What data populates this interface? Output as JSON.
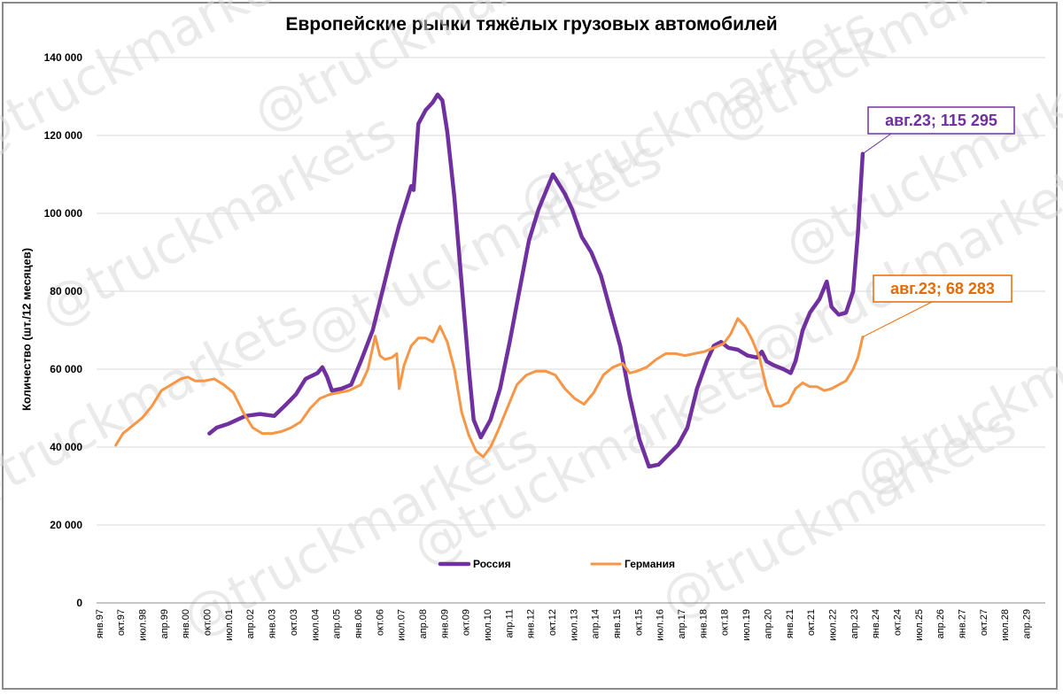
{
  "chart_data": {
    "type": "line",
    "title": "Европейские рынки тяжёлых грузовых автомобилей",
    "xlabel": "",
    "ylabel": "Количество (шт./12 месяцев)",
    "ylim": [
      0,
      140000
    ],
    "yticks": [
      0,
      20000,
      40000,
      60000,
      80000,
      100000,
      120000,
      140000
    ],
    "ytick_labels": [
      "0",
      "20 000",
      "40 000",
      "60 000",
      "80 000",
      "100 000",
      "120 000",
      "140 000"
    ],
    "xlim": [
      "1997-01",
      "2029-12"
    ],
    "xtick_labels": [
      "янв.97",
      "окт.97",
      "июл.98",
      "апр.99",
      "янв.00",
      "окт.00",
      "июл.01",
      "апр.02",
      "янв.03",
      "окт.03",
      "июл.04",
      "апр.05",
      "янв.06",
      "окт.06",
      "июл.07",
      "апр.08",
      "янв.09",
      "окт.09",
      "июл.10",
      "апр.11",
      "янв.12",
      "окт.12",
      "июл.13",
      "апр.14",
      "янв.15",
      "окт.15",
      "июл.16",
      "апр.17",
      "янв.18",
      "окт.18",
      "июл.19",
      "апр.20",
      "янв.21",
      "окт.21",
      "июл.22",
      "апр.23",
      "янв.24",
      "окт.24",
      "июл.25",
      "апр.26",
      "янв.27",
      "окт.27",
      "июл.28",
      "апр.29"
    ],
    "grid": true,
    "legend_position": "bottom-center",
    "series": [
      {
        "name": "Россия",
        "color": "#7030a0",
        "points": [
          [
            "2000-12",
            43500
          ],
          [
            "2001-03",
            45000
          ],
          [
            "2001-08",
            46000
          ],
          [
            "2002-03",
            48000
          ],
          [
            "2002-09",
            48500
          ],
          [
            "2003-03",
            48000
          ],
          [
            "2003-08",
            51000
          ],
          [
            "2003-12",
            53500
          ],
          [
            "2004-04",
            57500
          ],
          [
            "2004-09",
            59000
          ],
          [
            "2004-11",
            60500
          ],
          [
            "2005-01",
            58000
          ],
          [
            "2005-03",
            54500
          ],
          [
            "2005-07",
            55000
          ],
          [
            "2005-11",
            56000
          ],
          [
            "2006-03",
            62000
          ],
          [
            "2006-08",
            70000
          ],
          [
            "2006-12",
            80000
          ],
          [
            "2007-04",
            90000
          ],
          [
            "2007-07",
            97000
          ],
          [
            "2007-10",
            103000
          ],
          [
            "2007-12",
            107000
          ],
          [
            "2008-01",
            106000
          ],
          [
            "2008-03",
            123000
          ],
          [
            "2008-06",
            126500
          ],
          [
            "2008-09",
            128500
          ],
          [
            "2008-11",
            130500
          ],
          [
            "2009-01",
            129000
          ],
          [
            "2009-03",
            121000
          ],
          [
            "2009-06",
            104000
          ],
          [
            "2009-09",
            82000
          ],
          [
            "2009-12",
            60000
          ],
          [
            "2010-02",
            47000
          ],
          [
            "2010-05",
            42500
          ],
          [
            "2010-09",
            47000
          ],
          [
            "2011-01",
            55000
          ],
          [
            "2011-05",
            67000
          ],
          [
            "2011-09",
            80000
          ],
          [
            "2012-01",
            93000
          ],
          [
            "2012-05",
            101000
          ],
          [
            "2012-09",
            107000
          ],
          [
            "2012-11",
            110000
          ],
          [
            "2013-01",
            108000
          ],
          [
            "2013-04",
            105000
          ],
          [
            "2013-07",
            101000
          ],
          [
            "2013-11",
            94000
          ],
          [
            "2014-03",
            90000
          ],
          [
            "2014-07",
            84000
          ],
          [
            "2014-11",
            75000
          ],
          [
            "2015-03",
            66000
          ],
          [
            "2015-07",
            53000
          ],
          [
            "2015-11",
            42000
          ],
          [
            "2016-03",
            35000
          ],
          [
            "2016-07",
            35500
          ],
          [
            "2016-11",
            38000
          ],
          [
            "2017-03",
            40500
          ],
          [
            "2017-07",
            45000
          ],
          [
            "2017-11",
            55000
          ],
          [
            "2018-03",
            62000
          ],
          [
            "2018-06",
            66000
          ],
          [
            "2018-09",
            67000
          ],
          [
            "2018-12",
            65500
          ],
          [
            "2019-04",
            65000
          ],
          [
            "2019-08",
            63500
          ],
          [
            "2019-12",
            63000
          ],
          [
            "2020-02",
            64500
          ],
          [
            "2020-04",
            62000
          ],
          [
            "2020-07",
            61000
          ],
          [
            "2020-11",
            60000
          ],
          [
            "2021-02",
            59000
          ],
          [
            "2021-04",
            62000
          ],
          [
            "2021-07",
            70000
          ],
          [
            "2021-10",
            74500
          ],
          [
            "2022-02",
            78000
          ],
          [
            "2022-05",
            82500
          ],
          [
            "2022-07",
            76000
          ],
          [
            "2022-10",
            74000
          ],
          [
            "2023-01",
            74500
          ],
          [
            "2023-04",
            80000
          ],
          [
            "2023-06",
            95000
          ],
          [
            "2023-08",
            115295
          ]
        ]
      },
      {
        "name": "Германия",
        "color": "#f79646",
        "points": [
          [
            "1997-09",
            40500
          ],
          [
            "1997-12",
            43500
          ],
          [
            "1998-04",
            45500
          ],
          [
            "1998-08",
            47500
          ],
          [
            "1998-12",
            50500
          ],
          [
            "1999-04",
            54500
          ],
          [
            "1999-08",
            56000
          ],
          [
            "1999-12",
            57500
          ],
          [
            "2000-03",
            58000
          ],
          [
            "2000-06",
            57000
          ],
          [
            "2000-10",
            57000
          ],
          [
            "2001-02",
            57500
          ],
          [
            "2001-06",
            56000
          ],
          [
            "2001-10",
            54000
          ],
          [
            "2002-02",
            49000
          ],
          [
            "2002-06",
            45000
          ],
          [
            "2002-10",
            43500
          ],
          [
            "2003-02",
            43500
          ],
          [
            "2003-06",
            44000
          ],
          [
            "2003-10",
            45000
          ],
          [
            "2004-02",
            46500
          ],
          [
            "2004-06",
            50000
          ],
          [
            "2004-10",
            52500
          ],
          [
            "2005-02",
            53500
          ],
          [
            "2005-06",
            54000
          ],
          [
            "2005-10",
            54500
          ],
          [
            "2006-03",
            56000
          ],
          [
            "2006-06",
            60000
          ],
          [
            "2006-09",
            68500
          ],
          [
            "2006-11",
            63500
          ],
          [
            "2007-01",
            62500
          ],
          [
            "2007-04",
            63000
          ],
          [
            "2007-06",
            64000
          ],
          [
            "2007-07",
            55000
          ],
          [
            "2007-09",
            61000
          ],
          [
            "2007-12",
            66000
          ],
          [
            "2008-03",
            68000
          ],
          [
            "2008-06",
            68000
          ],
          [
            "2008-09",
            67000
          ],
          [
            "2008-12",
            71000
          ],
          [
            "2009-03",
            67000
          ],
          [
            "2009-06",
            60000
          ],
          [
            "2009-09",
            49000
          ],
          [
            "2009-12",
            43000
          ],
          [
            "2010-03",
            39000
          ],
          [
            "2010-06",
            37500
          ],
          [
            "2010-09",
            40000
          ],
          [
            "2010-12",
            44000
          ],
          [
            "2011-04",
            50000
          ],
          [
            "2011-08",
            56000
          ],
          [
            "2011-12",
            58500
          ],
          [
            "2012-04",
            59500
          ],
          [
            "2012-08",
            59500
          ],
          [
            "2012-12",
            58500
          ],
          [
            "2013-04",
            55000
          ],
          [
            "2013-08",
            52500
          ],
          [
            "2013-12",
            51000
          ],
          [
            "2014-04",
            54000
          ],
          [
            "2014-08",
            58500
          ],
          [
            "2014-12",
            60500
          ],
          [
            "2015-04",
            61500
          ],
          [
            "2015-07",
            59000
          ],
          [
            "2015-10",
            59500
          ],
          [
            "2016-02",
            60500
          ],
          [
            "2016-06",
            62500
          ],
          [
            "2016-10",
            64000
          ],
          [
            "2017-02",
            64000
          ],
          [
            "2017-06",
            63500
          ],
          [
            "2017-10",
            64000
          ],
          [
            "2018-02",
            64500
          ],
          [
            "2018-06",
            65500
          ],
          [
            "2018-10",
            66500
          ],
          [
            "2019-01",
            69000
          ],
          [
            "2019-04",
            73000
          ],
          [
            "2019-07",
            71000
          ],
          [
            "2019-10",
            67500
          ],
          [
            "2020-01",
            63000
          ],
          [
            "2020-04",
            55000
          ],
          [
            "2020-07",
            50500
          ],
          [
            "2020-10",
            50500
          ],
          [
            "2021-01",
            51500
          ],
          [
            "2021-04",
            55000
          ],
          [
            "2021-07",
            56500
          ],
          [
            "2021-10",
            55500
          ],
          [
            "2022-01",
            55500
          ],
          [
            "2022-04",
            54500
          ],
          [
            "2022-07",
            55000
          ],
          [
            "2022-10",
            56000
          ],
          [
            "2023-01",
            57000
          ],
          [
            "2023-04",
            60000
          ],
          [
            "2023-06",
            63000
          ],
          [
            "2023-08",
            68283
          ]
        ]
      }
    ],
    "annotations": [
      {
        "series": "Россия",
        "x": "2023-08",
        "y": 115295,
        "text": "авг.23;  115 295",
        "color": "#7030a0",
        "position": "upper-right"
      },
      {
        "series": "Германия",
        "x": "2023-08",
        "y": 68283,
        "text": "авг.23;  68 283",
        "color": "#e36c09",
        "position": "upper-right"
      }
    ]
  },
  "watermark": {
    "text": "@truckmarkets",
    "color": "#d9d9d9"
  }
}
